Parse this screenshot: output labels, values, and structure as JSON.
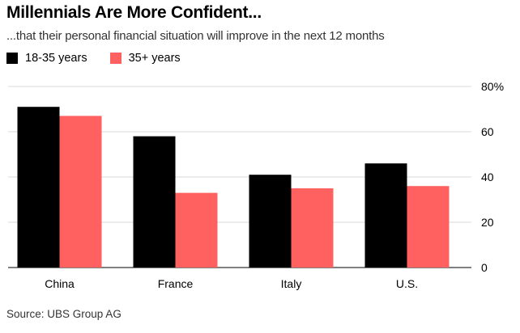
{
  "chart_data": {
    "type": "bar",
    "title": "Millennials Are More Confident...",
    "subtitle": "...that their personal financial situation will improve in the next 12 months",
    "categories": [
      "China",
      "France",
      "Italy",
      "U.S."
    ],
    "series": [
      {
        "name": "18-35 years",
        "color": "#000000",
        "values": [
          71,
          58,
          41,
          46
        ]
      },
      {
        "name": "35+ years",
        "color": "#ff6161",
        "values": [
          67,
          33,
          35,
          36
        ]
      }
    ],
    "y_ticks": [
      "0",
      "20",
      "40",
      "60",
      "80%"
    ],
    "ylim": [
      0,
      80
    ],
    "y_axis_side": "right",
    "grid": true,
    "legend_position": "top-left",
    "source": "Source: UBS Group AG"
  }
}
